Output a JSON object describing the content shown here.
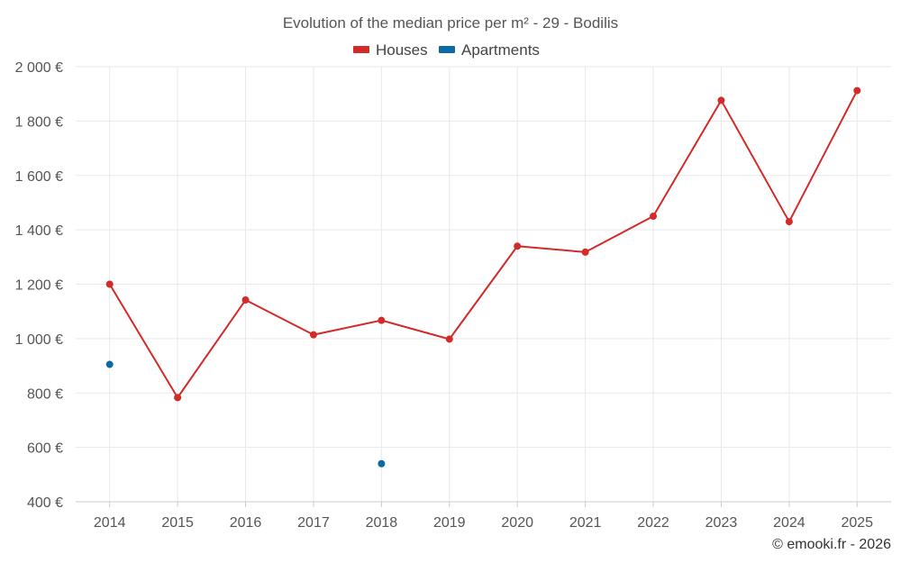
{
  "chart_data": {
    "type": "line",
    "title": "Evolution of the median price per m² - 29 - Bodilis",
    "xlabel": "",
    "ylabel": "",
    "categories": [
      "2014",
      "2015",
      "2016",
      "2017",
      "2018",
      "2019",
      "2020",
      "2021",
      "2022",
      "2023",
      "2024",
      "2025"
    ],
    "ylim": [
      400,
      2000
    ],
    "yticks": [
      400,
      600,
      800,
      1000,
      1200,
      1400,
      1600,
      1800,
      2000
    ],
    "ytick_labels": [
      "400 €",
      "600 €",
      "800 €",
      "1 000 €",
      "1 200 €",
      "1 400 €",
      "1 600 €",
      "1 800 €",
      "2 000 €"
    ],
    "grid": true,
    "legend_position": "top-center",
    "series": [
      {
        "name": "Houses",
        "color": "#d32a2a",
        "line": true,
        "values": [
          1200,
          783,
          1142,
          1014,
          1067,
          998,
          1340,
          1318,
          1450,
          1876,
          1430,
          1912
        ]
      },
      {
        "name": "Apartments",
        "color": "#0e6aa3",
        "line": false,
        "values": [
          905,
          null,
          null,
          null,
          540,
          null,
          null,
          null,
          null,
          null,
          null,
          null
        ]
      }
    ]
  },
  "credit": "© emooki.fr - 2026"
}
